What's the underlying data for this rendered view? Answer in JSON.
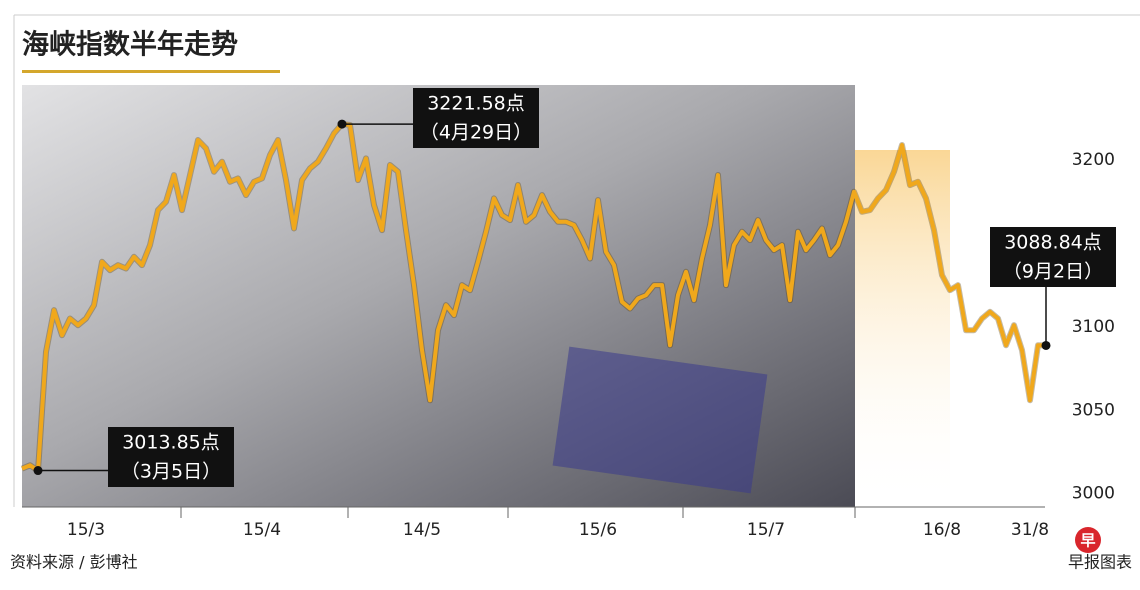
{
  "chart_data": {
    "type": "line",
    "title": "海峡指数半年走势",
    "source": "资料来源 / 彭博社",
    "credit": "早报图表",
    "logo": "早",
    "categories": [
      null,
      null,
      null,
      null,
      null,
      null,
      null,
      null,
      "15/3",
      null,
      null,
      null,
      null,
      null,
      null,
      null,
      null,
      null,
      null,
      null,
      null,
      null,
      null,
      null,
      null,
      null,
      null,
      null,
      null,
      null,
      "15/4",
      null,
      null,
      null,
      null,
      null,
      null,
      null,
      null,
      null,
      null,
      null,
      null,
      null,
      null,
      null,
      null,
      null,
      null,
      null,
      "14/5",
      null,
      null,
      null,
      null,
      null,
      null,
      null,
      null,
      null,
      null,
      null,
      null,
      null,
      null,
      null,
      null,
      null,
      null,
      null,
      null,
      null,
      "15/6",
      null,
      null,
      null,
      null,
      null,
      null,
      null,
      null,
      null,
      null,
      null,
      null,
      null,
      null,
      null,
      null,
      null,
      null,
      null,
      null,
      "15/7",
      null,
      null,
      null,
      null,
      null,
      null,
      null,
      null,
      null,
      null,
      null,
      null,
      null,
      null,
      null,
      null,
      null,
      null,
      null,
      null,
      null,
      "16/8",
      null,
      null,
      null,
      null,
      null,
      null,
      null,
      null,
      null,
      null,
      "31/8",
      null,
      null
    ],
    "series": [
      {
        "color": "#f0a81c",
        "values": [
          3015,
          3017,
          3013.85,
          3085,
          3110,
          3095,
          3105,
          3101,
          3105,
          3113,
          3139,
          3134,
          3137,
          3135,
          3142,
          3137,
          3149,
          3170,
          3175,
          3191,
          3170,
          3191,
          3212,
          3207,
          3193,
          3199,
          3187,
          3189,
          3179,
          3187,
          3189,
          3203,
          3212,
          3188,
          3159,
          3188,
          3195,
          3199,
          3207,
          3216,
          3221.58,
          3221,
          3188,
          3201,
          3173,
          3158,
          3197,
          3193,
          3158,
          3125,
          3086,
          3056,
          3098,
          3113,
          3107,
          3125,
          3122,
          3139,
          3157,
          3177,
          3167,
          3164,
          3185,
          3163,
          3167,
          3179,
          3169,
          3163,
          3163,
          3161,
          3152,
          3141,
          3176,
          3145,
          3137,
          3115,
          3111,
          3117,
          3119,
          3125,
          3125,
          3089,
          3119,
          3133,
          3116,
          3141,
          3161,
          3191,
          3125,
          3149,
          3157,
          3152,
          3164,
          3152,
          3146,
          3149,
          3116,
          3157,
          3146,
          3152,
          3159,
          3143,
          3149,
          3163,
          3181,
          3169,
          3170,
          3177,
          3182,
          3193,
          3209,
          3185,
          3187,
          3177,
          3158,
          3131,
          3122,
          3125,
          3098,
          3098,
          3105,
          3109,
          3105,
          3089,
          3101,
          3086,
          3056,
          3089,
          3088.84
        ]
      }
    ],
    "ylim": [
      2992,
      3245
    ],
    "yticks": [
      3000,
      3050,
      3100,
      3200
    ],
    "annotations": [
      {
        "label": "3221.58点",
        "date": "（4月29日）"
      },
      {
        "label": "3013.85点",
        "date": "（3月5日）"
      },
      {
        "label": "3088.84点",
        "date": "（9月2日）"
      }
    ]
  }
}
